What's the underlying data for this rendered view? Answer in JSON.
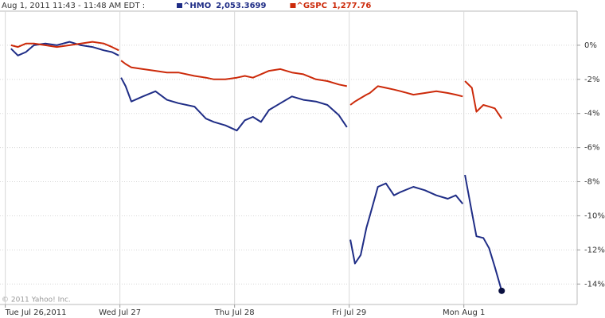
{
  "chart_data": {
    "type": "line",
    "subtitle": "Aug 1, 2011 11:43 - 11:48 AM EDT :",
    "copyright": "© 2011 Yahoo! Inc.",
    "x": [
      0.05,
      0.11,
      0.18,
      0.25,
      0.35,
      0.45,
      0.56,
      0.66,
      0.76,
      0.86,
      0.93,
      0.99,
      1.0,
      1.01,
      1.05,
      1.1,
      1.2,
      1.31,
      1.41,
      1.51,
      1.65,
      1.75,
      1.82,
      1.92,
      2.02,
      2.09,
      2.16,
      2.23,
      2.3,
      2.4,
      2.5,
      2.6,
      2.71,
      2.81,
      2.91,
      2.98,
      3.0,
      3.01,
      3.05,
      3.1,
      3.15,
      3.18,
      3.25,
      3.32,
      3.39,
      3.45,
      3.56,
      3.66,
      3.76,
      3.86,
      3.93,
      3.99,
      4.0,
      4.01,
      4.07,
      4.11,
      4.17,
      4.22,
      4.27,
      4.33
    ],
    "series": [
      {
        "name": "^HMO",
        "quote": "2,053.3699",
        "color": "#1f2d86",
        "values": [
          -0.2,
          -0.6,
          -0.4,
          0.0,
          0.1,
          0.0,
          0.2,
          0.0,
          -0.1,
          -0.3,
          -0.4,
          -0.6,
          null,
          -1.9,
          -2.4,
          -3.3,
          -3.0,
          -2.7,
          -3.2,
          -3.4,
          -3.6,
          -4.3,
          -4.5,
          -4.7,
          -5.0,
          -4.4,
          -4.2,
          -4.5,
          -3.8,
          -3.4,
          -3.0,
          -3.2,
          -3.3,
          -3.5,
          -4.1,
          -4.8,
          null,
          -11.4,
          -12.8,
          -12.3,
          -10.7,
          -10.0,
          -8.3,
          -8.1,
          -8.8,
          -8.6,
          -8.3,
          -8.5,
          -8.8,
          -9.0,
          -8.8,
          -9.3,
          null,
          -7.6,
          -9.8,
          -11.2,
          -11.3,
          -11.9,
          -13.0,
          -14.4
        ]
      },
      {
        "name": "^GSPC",
        "quote": "1,277.76",
        "color": "#cc2a0a",
        "values": [
          0.0,
          -0.1,
          0.1,
          0.1,
          0.0,
          -0.1,
          0.0,
          0.1,
          0.2,
          0.1,
          -0.1,
          -0.3,
          null,
          -0.9,
          -1.1,
          -1.3,
          -1.4,
          -1.5,
          -1.6,
          -1.6,
          -1.8,
          -1.9,
          -2.0,
          -2.0,
          -1.9,
          -1.8,
          -1.9,
          -1.7,
          -1.5,
          -1.4,
          -1.6,
          -1.7,
          -2.0,
          -2.1,
          -2.3,
          -2.4,
          null,
          -3.5,
          -3.3,
          -3.1,
          -2.9,
          -2.8,
          -2.4,
          -2.5,
          -2.6,
          -2.7,
          -2.9,
          -2.8,
          -2.7,
          -2.8,
          -2.9,
          -3.0,
          null,
          -2.1,
          -2.5,
          -3.9,
          -3.5,
          -3.6,
          -3.7,
          -4.3
        ]
      }
    ],
    "xlim": [
      -0.046,
      4.988
    ],
    "xticks": [
      {
        "value": 0,
        "label": "Tue Jul 26,2011"
      },
      {
        "value": 1,
        "label": "Wed Jul 27"
      },
      {
        "value": 2,
        "label": "Thu Jul 28"
      },
      {
        "value": 3,
        "label": "Fri Jul 29"
      },
      {
        "value": 4,
        "label": "Mon Aug 1"
      }
    ],
    "ylim": [
      -15.2,
      2
    ],
    "yticks": [
      {
        "value": 0,
        "label": "0%"
      },
      {
        "value": -2,
        "label": "-2%"
      },
      {
        "value": -4,
        "label": "-4%"
      },
      {
        "value": -6,
        "label": "-6%"
      },
      {
        "value": -8,
        "label": "-8%"
      },
      {
        "value": -10,
        "label": "-10%"
      },
      {
        "value": -12,
        "label": "-12%"
      },
      {
        "value": -14,
        "label": "-14%"
      }
    ],
    "grid": true
  }
}
